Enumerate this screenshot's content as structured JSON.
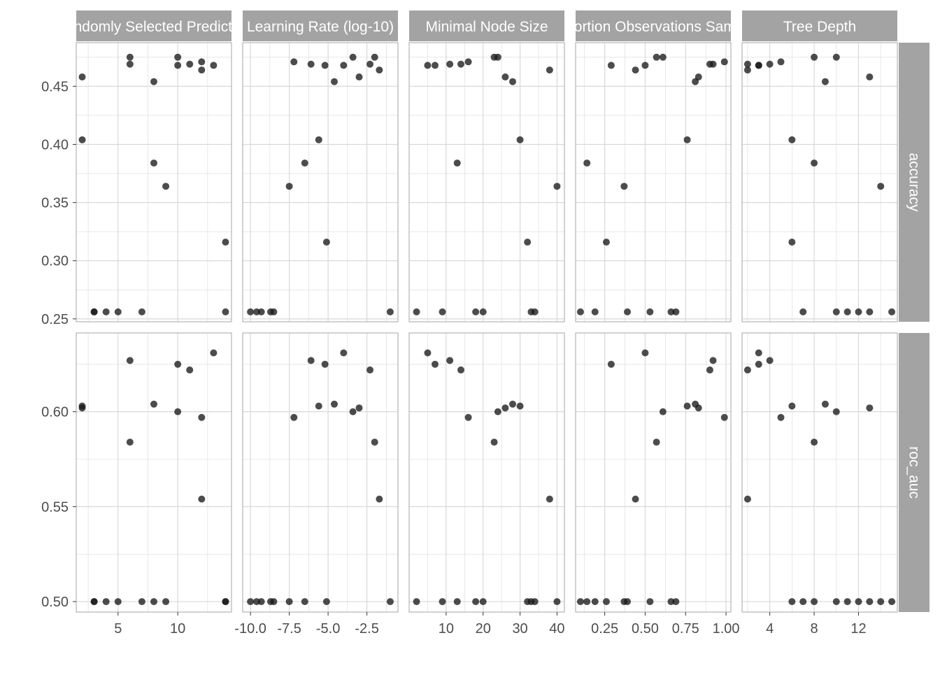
{
  "colors": {
    "strip_bg": "#a3a3a3",
    "strip_text": "#ffffff",
    "grid": "#d9d9d9",
    "panel_border": "#b3b3b3",
    "point": "#1a1a1a",
    "tick_text": "#4d4d4d"
  },
  "chart_data": {
    "type": "scatter",
    "layout": "facet-grid",
    "legend": "none",
    "grid": true,
    "columns": [
      {
        "label": "Randomly Selected Predictors",
        "xlim": [
          1.5,
          14.5
        ],
        "xticks": [
          5,
          10
        ],
        "xticklabels": [
          "5",
          "10"
        ]
      },
      {
        "label": "Learning Rate (log-10)",
        "xlim": [
          -10.5,
          -0.5
        ],
        "xticks": [
          -10,
          -7.5,
          -5,
          -2.5
        ],
        "xticklabels": [
          "-10.0",
          "-7.5",
          "-5.0",
          "-2.5"
        ]
      },
      {
        "label": "Minimal Node Size",
        "xlim": [
          0,
          42
        ],
        "xticks": [
          10,
          20,
          30,
          40
        ],
        "xticklabels": [
          "10",
          "20",
          "30",
          "40"
        ]
      },
      {
        "label": "Proportion Observations Sampled",
        "xlim": [
          0.07,
          1.03
        ],
        "xticks": [
          0.25,
          0.5,
          0.75,
          1.0
        ],
        "xticklabels": [
          "0.25",
          "0.50",
          "0.75",
          "1.00"
        ]
      },
      {
        "label": "Tree Depth",
        "xlim": [
          1.5,
          15.5
        ],
        "xticks": [
          4,
          8,
          12
        ],
        "xticklabels": [
          "4",
          "8",
          "12"
        ]
      }
    ],
    "rows": [
      {
        "label": "accuracy",
        "ylim": [
          0.2475,
          0.4875
        ],
        "yticks": [
          0.25,
          0.3,
          0.35,
          0.4,
          0.45
        ],
        "yticklabels": [
          "0.25",
          "0.30",
          "0.35",
          "0.40",
          "0.45"
        ]
      },
      {
        "label": "roc_auc",
        "ylim": [
          0.4945,
          0.6415
        ],
        "yticks": [
          0.5,
          0.55,
          0.6
        ],
        "yticklabels": [
          "0.50",
          "0.55",
          "0.60"
        ]
      }
    ],
    "points": {
      "accuracy": [
        [
          [
            2,
            0.458
          ],
          [
            2,
            0.404
          ],
          [
            3,
            0.256
          ],
          [
            3,
            0.256
          ],
          [
            4,
            0.256
          ],
          [
            5,
            0.256
          ],
          [
            6,
            0.475
          ],
          [
            6,
            0.469
          ],
          [
            7,
            0.256
          ],
          [
            8,
            0.454
          ],
          [
            8,
            0.384
          ],
          [
            9,
            0.364
          ],
          [
            10,
            0.475
          ],
          [
            10,
            0.468
          ],
          [
            11,
            0.469
          ],
          [
            12,
            0.471
          ],
          [
            12,
            0.464
          ],
          [
            13,
            0.468
          ],
          [
            14,
            0.316
          ],
          [
            14,
            0.256
          ]
        ],
        [
          [
            -10.0,
            0.256
          ],
          [
            -9.6,
            0.256
          ],
          [
            -9.3,
            0.256
          ],
          [
            -8.7,
            0.256
          ],
          [
            -8.5,
            0.256
          ],
          [
            -7.5,
            0.364
          ],
          [
            -7.2,
            0.471
          ],
          [
            -6.5,
            0.384
          ],
          [
            -6.1,
            0.469
          ],
          [
            -5.6,
            0.404
          ],
          [
            -5.2,
            0.468
          ],
          [
            -5.1,
            0.316
          ],
          [
            -4.6,
            0.454
          ],
          [
            -4.0,
            0.468
          ],
          [
            -3.4,
            0.475
          ],
          [
            -3.0,
            0.458
          ],
          [
            -2.3,
            0.469
          ],
          [
            -2.0,
            0.475
          ],
          [
            -1.7,
            0.464
          ],
          [
            -1.0,
            0.256
          ]
        ],
        [
          [
            2,
            0.256
          ],
          [
            5,
            0.468
          ],
          [
            7,
            0.468
          ],
          [
            9,
            0.256
          ],
          [
            11,
            0.469
          ],
          [
            13,
            0.384
          ],
          [
            14,
            0.469
          ],
          [
            16,
            0.471
          ],
          [
            18,
            0.256
          ],
          [
            20,
            0.256
          ],
          [
            23,
            0.475
          ],
          [
            24,
            0.475
          ],
          [
            26,
            0.458
          ],
          [
            28,
            0.454
          ],
          [
            30,
            0.404
          ],
          [
            32,
            0.316
          ],
          [
            33,
            0.256
          ],
          [
            34,
            0.256
          ],
          [
            38,
            0.464
          ],
          [
            40,
            0.364
          ]
        ],
        [
          [
            0.1,
            0.256
          ],
          [
            0.14,
            0.384
          ],
          [
            0.19,
            0.256
          ],
          [
            0.26,
            0.316
          ],
          [
            0.29,
            0.468
          ],
          [
            0.37,
            0.364
          ],
          [
            0.39,
            0.256
          ],
          [
            0.44,
            0.464
          ],
          [
            0.5,
            0.468
          ],
          [
            0.53,
            0.256
          ],
          [
            0.57,
            0.475
          ],
          [
            0.61,
            0.475
          ],
          [
            0.66,
            0.256
          ],
          [
            0.69,
            0.256
          ],
          [
            0.76,
            0.404
          ],
          [
            0.81,
            0.454
          ],
          [
            0.83,
            0.458
          ],
          [
            0.9,
            0.469
          ],
          [
            0.92,
            0.469
          ],
          [
            0.99,
            0.471
          ]
        ],
        [
          [
            2,
            0.469
          ],
          [
            2,
            0.464
          ],
          [
            3,
            0.468
          ],
          [
            3,
            0.468
          ],
          [
            4,
            0.469
          ],
          [
            5,
            0.471
          ],
          [
            6,
            0.404
          ],
          [
            6,
            0.316
          ],
          [
            7,
            0.256
          ],
          [
            8,
            0.475
          ],
          [
            8,
            0.384
          ],
          [
            9,
            0.454
          ],
          [
            10,
            0.475
          ],
          [
            10,
            0.256
          ],
          [
            11,
            0.256
          ],
          [
            12,
            0.256
          ],
          [
            13,
            0.458
          ],
          [
            13,
            0.256
          ],
          [
            14,
            0.364
          ],
          [
            15,
            0.256
          ]
        ]
      ],
      "roc_auc": [
        [
          [
            2,
            0.603
          ],
          [
            2,
            0.602
          ],
          [
            3,
            0.5
          ],
          [
            3,
            0.5
          ],
          [
            4,
            0.5
          ],
          [
            5,
            0.5
          ],
          [
            6,
            0.627
          ],
          [
            6,
            0.584
          ],
          [
            7,
            0.5
          ],
          [
            8,
            0.604
          ],
          [
            8,
            0.5
          ],
          [
            9,
            0.5
          ],
          [
            10,
            0.625
          ],
          [
            10,
            0.6
          ],
          [
            11,
            0.622
          ],
          [
            12,
            0.597
          ],
          [
            12,
            0.554
          ],
          [
            13,
            0.631
          ],
          [
            14,
            0.5
          ],
          [
            14,
            0.5
          ]
        ],
        [
          [
            -10.0,
            0.5
          ],
          [
            -9.6,
            0.5
          ],
          [
            -9.3,
            0.5
          ],
          [
            -8.7,
            0.5
          ],
          [
            -8.5,
            0.5
          ],
          [
            -7.5,
            0.5
          ],
          [
            -7.2,
            0.597
          ],
          [
            -6.5,
            0.5
          ],
          [
            -6.1,
            0.627
          ],
          [
            -5.6,
            0.603
          ],
          [
            -5.2,
            0.625
          ],
          [
            -5.1,
            0.5
          ],
          [
            -4.6,
            0.604
          ],
          [
            -4.0,
            0.631
          ],
          [
            -3.4,
            0.6
          ],
          [
            -3.0,
            0.602
          ],
          [
            -2.3,
            0.622
          ],
          [
            -2.0,
            0.584
          ],
          [
            -1.7,
            0.554
          ],
          [
            -1.0,
            0.5
          ]
        ],
        [
          [
            2,
            0.5
          ],
          [
            5,
            0.631
          ],
          [
            7,
            0.625
          ],
          [
            9,
            0.5
          ],
          [
            11,
            0.627
          ],
          [
            13,
            0.5
          ],
          [
            14,
            0.622
          ],
          [
            16,
            0.597
          ],
          [
            18,
            0.5
          ],
          [
            20,
            0.5
          ],
          [
            23,
            0.584
          ],
          [
            24,
            0.6
          ],
          [
            26,
            0.602
          ],
          [
            28,
            0.604
          ],
          [
            30,
            0.603
          ],
          [
            32,
            0.5
          ],
          [
            33,
            0.5
          ],
          [
            34,
            0.5
          ],
          [
            38,
            0.554
          ],
          [
            40,
            0.5
          ]
        ],
        [
          [
            0.1,
            0.5
          ],
          [
            0.14,
            0.5
          ],
          [
            0.19,
            0.5
          ],
          [
            0.26,
            0.5
          ],
          [
            0.29,
            0.625
          ],
          [
            0.37,
            0.5
          ],
          [
            0.39,
            0.5
          ],
          [
            0.44,
            0.554
          ],
          [
            0.5,
            0.631
          ],
          [
            0.53,
            0.5
          ],
          [
            0.57,
            0.584
          ],
          [
            0.61,
            0.6
          ],
          [
            0.66,
            0.5
          ],
          [
            0.69,
            0.5
          ],
          [
            0.76,
            0.603
          ],
          [
            0.81,
            0.604
          ],
          [
            0.83,
            0.602
          ],
          [
            0.9,
            0.622
          ],
          [
            0.92,
            0.627
          ],
          [
            0.99,
            0.597
          ]
        ],
        [
          [
            2,
            0.622
          ],
          [
            2,
            0.554
          ],
          [
            3,
            0.625
          ],
          [
            3,
            0.631
          ],
          [
            4,
            0.627
          ],
          [
            5,
            0.597
          ],
          [
            6,
            0.603
          ],
          [
            6,
            0.5
          ],
          [
            7,
            0.5
          ],
          [
            8,
            0.584
          ],
          [
            8,
            0.5
          ],
          [
            9,
            0.604
          ],
          [
            10,
            0.6
          ],
          [
            10,
            0.5
          ],
          [
            11,
            0.5
          ],
          [
            12,
            0.5
          ],
          [
            13,
            0.602
          ],
          [
            13,
            0.5
          ],
          [
            14,
            0.5
          ],
          [
            15,
            0.5
          ]
        ]
      ]
    }
  }
}
